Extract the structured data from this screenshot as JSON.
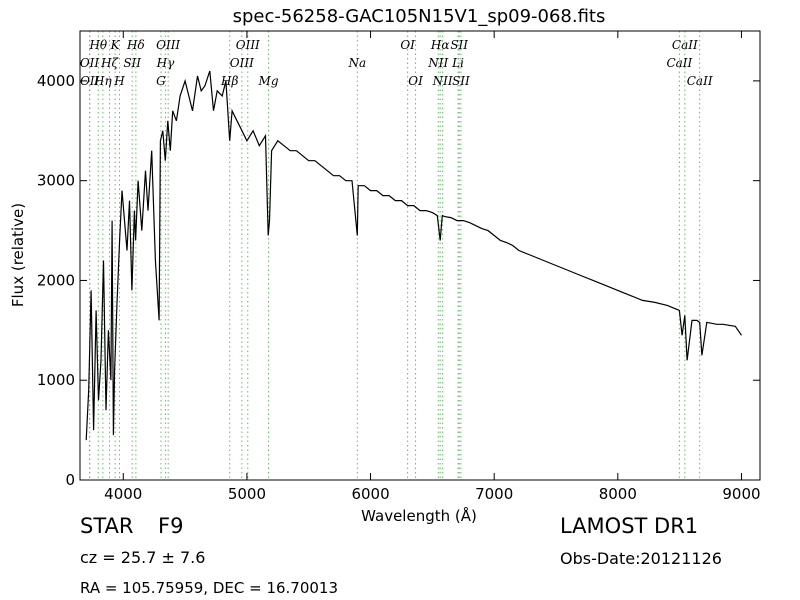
{
  "chart_data": {
    "type": "line",
    "title": "spec-56258-GAC105N15V1_sp09-068.fits",
    "xlabel": "Wavelength (Å)",
    "ylabel": "Flux (relative)",
    "xlim": [
      3650,
      9150
    ],
    "ylim": [
      0,
      4500
    ],
    "xticks": [
      4000,
      5000,
      6000,
      7000,
      8000,
      9000
    ],
    "yticks": [
      0,
      1000,
      2000,
      3000,
      4000
    ],
    "grid": false,
    "series": [
      {
        "color": "#000000",
        "x": [
          3700,
          3720,
          3740,
          3760,
          3780,
          3800,
          3820,
          3840,
          3860,
          3880,
          3900,
          3910,
          3920,
          3930,
          3950,
          3970,
          3990,
          4010,
          4030,
          4050,
          4070,
          4090,
          4100,
          4120,
          4150,
          4180,
          4200,
          4230,
          4260,
          4290,
          4300,
          4320,
          4340,
          4360,
          4380,
          4400,
          4430,
          4460,
          4500,
          4530,
          4560,
          4600,
          4630,
          4660,
          4700,
          4730,
          4760,
          4800,
          4830,
          4861,
          4880,
          4920,
          4960,
          5000,
          5050,
          5100,
          5150,
          5172,
          5183,
          5200,
          5250,
          5300,
          5350,
          5400,
          5450,
          5500,
          5550,
          5600,
          5650,
          5700,
          5750,
          5800,
          5850,
          5893,
          5900,
          5950,
          6000,
          6050,
          6100,
          6150,
          6200,
          6250,
          6300,
          6350,
          6400,
          6450,
          6500,
          6540,
          6563,
          6580,
          6600,
          6650,
          6700,
          6750,
          6800,
          6850,
          6900,
          6950,
          7000,
          7050,
          7100,
          7150,
          7200,
          7300,
          7400,
          7500,
          7600,
          7700,
          7800,
          7900,
          8000,
          8100,
          8200,
          8300,
          8400,
          8498,
          8520,
          8542,
          8560,
          8600,
          8640,
          8662,
          8680,
          8720,
          8760,
          8800,
          8850,
          8900,
          8950,
          9000
        ],
        "y": [
          400,
          900,
          1900,
          500,
          1700,
          800,
          1200,
          2200,
          700,
          1500,
          1000,
          2600,
          450,
          1100,
          1800,
          2400,
          2900,
          2600,
          2300,
          2800,
          1900,
          2700,
          2400,
          3000,
          2500,
          3100,
          2700,
          3300,
          2200,
          1600,
          3400,
          3500,
          3200,
          3600,
          3300,
          3700,
          3600,
          3850,
          4000,
          3850,
          3700,
          4050,
          3900,
          3950,
          4100,
          3700,
          3900,
          3850,
          4000,
          3400,
          3700,
          3600,
          3500,
          3400,
          3500,
          3350,
          3450,
          2450,
          2600,
          3300,
          3400,
          3350,
          3300,
          3300,
          3250,
          3200,
          3200,
          3150,
          3100,
          3050,
          3050,
          3000,
          3000,
          2450,
          2950,
          2950,
          2900,
          2900,
          2850,
          2850,
          2800,
          2800,
          2750,
          2750,
          2700,
          2700,
          2680,
          2650,
          2400,
          2650,
          2640,
          2630,
          2600,
          2600,
          2580,
          2550,
          2520,
          2500,
          2450,
          2400,
          2380,
          2350,
          2300,
          2250,
          2200,
          2150,
          2100,
          2050,
          2000,
          1950,
          1900,
          1850,
          1800,
          1780,
          1750,
          1700,
          1450,
          1650,
          1200,
          1600,
          1600,
          1580,
          1250,
          1580,
          1570,
          1560,
          1560,
          1550,
          1540,
          1450
        ]
      }
    ],
    "lines": {
      "color": "#66bb66",
      "labels": [
        {
          "text": "Hθ",
          "x": 3798,
          "row": 1
        },
        {
          "text": "K",
          "x": 3934,
          "row": 1
        },
        {
          "text": "Hδ",
          "x": 4102,
          "row": 1
        },
        {
          "text": "OIII",
          "x": 4363,
          "row": 1
        },
        {
          "text": "OIII",
          "x": 5007,
          "row": 1
        },
        {
          "text": "OI",
          "x": 6300,
          "row": 1
        },
        {
          "text": "Hα",
          "x": 6563,
          "row": 1
        },
        {
          "text": "SII",
          "x": 6717,
          "row": 1
        },
        {
          "text": "CaII",
          "x": 8542,
          "row": 1
        },
        {
          "text": "OII",
          "x": 3727,
          "row": 2
        },
        {
          "text": "Hζ",
          "x": 3889,
          "row": 2
        },
        {
          "text": "SII",
          "x": 4072,
          "row": 2
        },
        {
          "text": "Hγ",
          "x": 4341,
          "row": 2
        },
        {
          "text": "OIII",
          "x": 4959,
          "row": 2
        },
        {
          "text": "Na",
          "x": 5893,
          "row": 2
        },
        {
          "text": "NII",
          "x": 6548,
          "row": 2
        },
        {
          "text": "Li",
          "x": 6708,
          "row": 2
        },
        {
          "text": "CaII",
          "x": 8498,
          "row": 2
        },
        {
          "text": "OII",
          "x": 3729,
          "row": 3
        },
        {
          "text": "Hη",
          "x": 3835,
          "row": 3
        },
        {
          "text": "H",
          "x": 3969,
          "row": 3
        },
        {
          "text": "G",
          "x": 4305,
          "row": 3
        },
        {
          "text": "Hβ",
          "x": 4861,
          "row": 3
        },
        {
          "text": "Mg",
          "x": 5175,
          "row": 3
        },
        {
          "text": "OI",
          "x": 6364,
          "row": 3
        },
        {
          "text": "NII",
          "x": 6583,
          "row": 3
        },
        {
          "text": "SII",
          "x": 6731,
          "row": 3
        },
        {
          "text": "CaII",
          "x": 8662,
          "row": 3
        }
      ]
    }
  },
  "info": {
    "class_label": "STAR",
    "subclass": "F9",
    "cz": "cz = 25.7 ± 7.6",
    "coords": "RA = 105.75959, DEC = 16.70013",
    "survey": "LAMOST DR1",
    "obs_date": "Obs-Date:20121126"
  }
}
